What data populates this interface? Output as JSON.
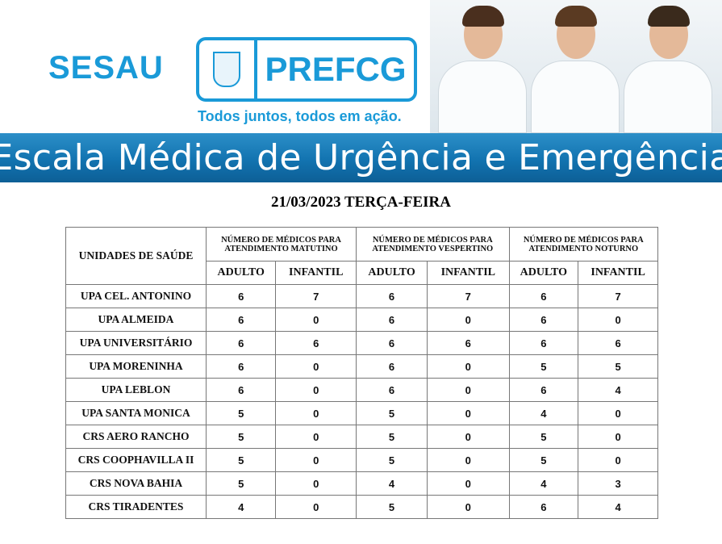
{
  "header": {
    "sesau": "SESAU",
    "pref": "PREFCG",
    "slogan": "Todos juntos, todos em ação.",
    "banner": "Escala Médica de Urgência e Emergência"
  },
  "date": "21/03/2023 TERÇA-FEIRA",
  "table": {
    "unit_header": "UNIDADES DE SAÚDE",
    "groups": [
      "NÚMERO DE MÉDICOS PARA ATENDIMENTO MATUTINO",
      "NÚMERO DE MÉDICOS PARA ATENDIMENTO VESPERTINO",
      "NÚMERO DE MÉDICOS PARA ATENDIMENTO NOTURNO"
    ],
    "sub": [
      "ADULTO",
      "INFANTIL"
    ],
    "rows": [
      {
        "name": "UPA CEL. ANTONINO",
        "v": [
          6,
          7,
          6,
          7,
          6,
          7
        ]
      },
      {
        "name": "UPA ALMEIDA",
        "v": [
          6,
          0,
          6,
          0,
          6,
          0
        ]
      },
      {
        "name": "UPA UNIVERSITÁRIO",
        "v": [
          6,
          6,
          6,
          6,
          6,
          6
        ]
      },
      {
        "name": "UPA MORENINHA",
        "v": [
          6,
          0,
          6,
          0,
          5,
          5
        ]
      },
      {
        "name": "UPA LEBLON",
        "v": [
          6,
          0,
          6,
          0,
          6,
          4
        ]
      },
      {
        "name": "UPA SANTA MONICA",
        "v": [
          5,
          0,
          5,
          0,
          4,
          0
        ]
      },
      {
        "name": "CRS AERO RANCHO",
        "v": [
          5,
          0,
          5,
          0,
          5,
          0
        ]
      },
      {
        "name": "CRS COOPHAVILLA II",
        "v": [
          5,
          0,
          5,
          0,
          5,
          0
        ]
      },
      {
        "name": "CRS NOVA BAHIA",
        "v": [
          5,
          0,
          4,
          0,
          4,
          3
        ]
      },
      {
        "name": "CRS TIRADENTES",
        "v": [
          4,
          0,
          5,
          0,
          6,
          4
        ]
      }
    ]
  }
}
